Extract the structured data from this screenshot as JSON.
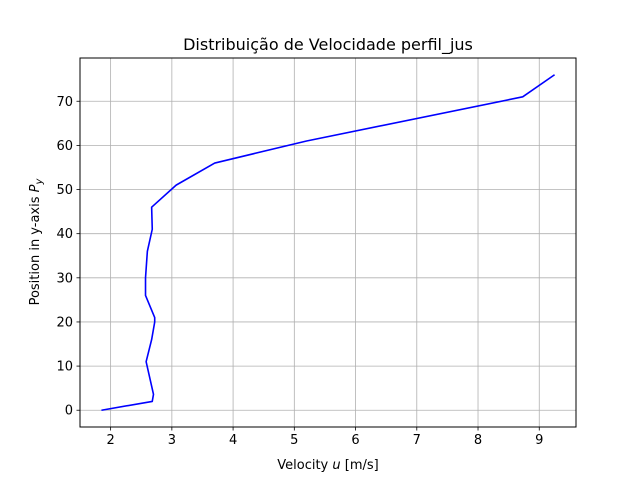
{
  "chart_data": {
    "type": "line",
    "title": "Distribuição de Velocidade perfil_jus",
    "xlabel": {
      "prefix": "Velocity ",
      "var": "u",
      "suffix": " [m/s]"
    },
    "ylabel": {
      "prefix": "Position in y-axis ",
      "var": "P",
      "sub": "y"
    },
    "xlim": [
      1.5,
      9.6
    ],
    "ylim": [
      -3.8,
      79.8
    ],
    "xticks": [
      2,
      3,
      4,
      5,
      6,
      7,
      8,
      9
    ],
    "yticks": [
      0,
      10,
      20,
      30,
      40,
      50,
      60,
      70
    ],
    "grid": true,
    "series": [
      {
        "color": "#0000ff",
        "x": [
          1.85,
          2.68,
          2.7,
          2.58,
          2.67,
          2.72,
          2.72,
          2.57,
          2.57,
          2.6,
          2.68,
          2.67,
          3.07,
          3.7,
          5.2,
          8.73,
          9.25
        ],
        "y": [
          0,
          2,
          3.6,
          11,
          16,
          20,
          21,
          26,
          30,
          36,
          41,
          46,
          51,
          56,
          61,
          71,
          76
        ]
      }
    ]
  }
}
